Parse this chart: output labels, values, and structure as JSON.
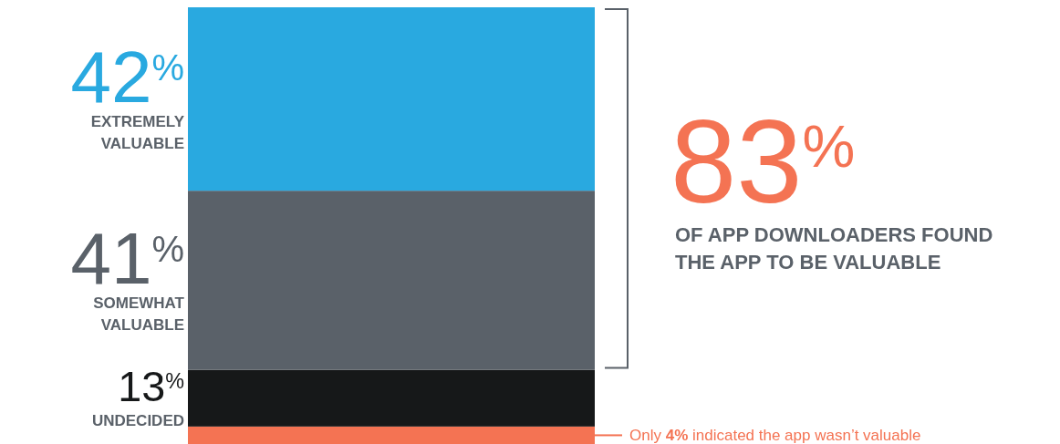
{
  "chart_data": {
    "type": "bar",
    "stacked": true,
    "categories": [
      null
    ],
    "series": [
      {
        "color": "#f47353",
        "values": [
          4
        ],
        "value_labels": [
          "Only 4% indicated the app wasn’t valuable"
        ]
      },
      {
        "name": "UNDECIDED",
        "color": "#161819",
        "values": [
          13
        ],
        "value_labels": [
          "13$^{%}$"
        ]
      },
      {
        "name": "SOMEWHAT VALUABLE",
        "color": "#5a6169",
        "values": [
          41
        ],
        "value_labels": [
          "41$^{%}$"
        ]
      },
      {
        "name": "EXTREMELY VALUABLE",
        "color": "#29a9e0",
        "values": [
          42
        ],
        "value_labels": [
          "42$^{%}$"
        ]
      }
    ],
    "annotations": [
      "83$^{%}$",
      "OF APP DOWNLOADERS FOUND THE APP TO BE VALUABLE"
    ]
  }
}
